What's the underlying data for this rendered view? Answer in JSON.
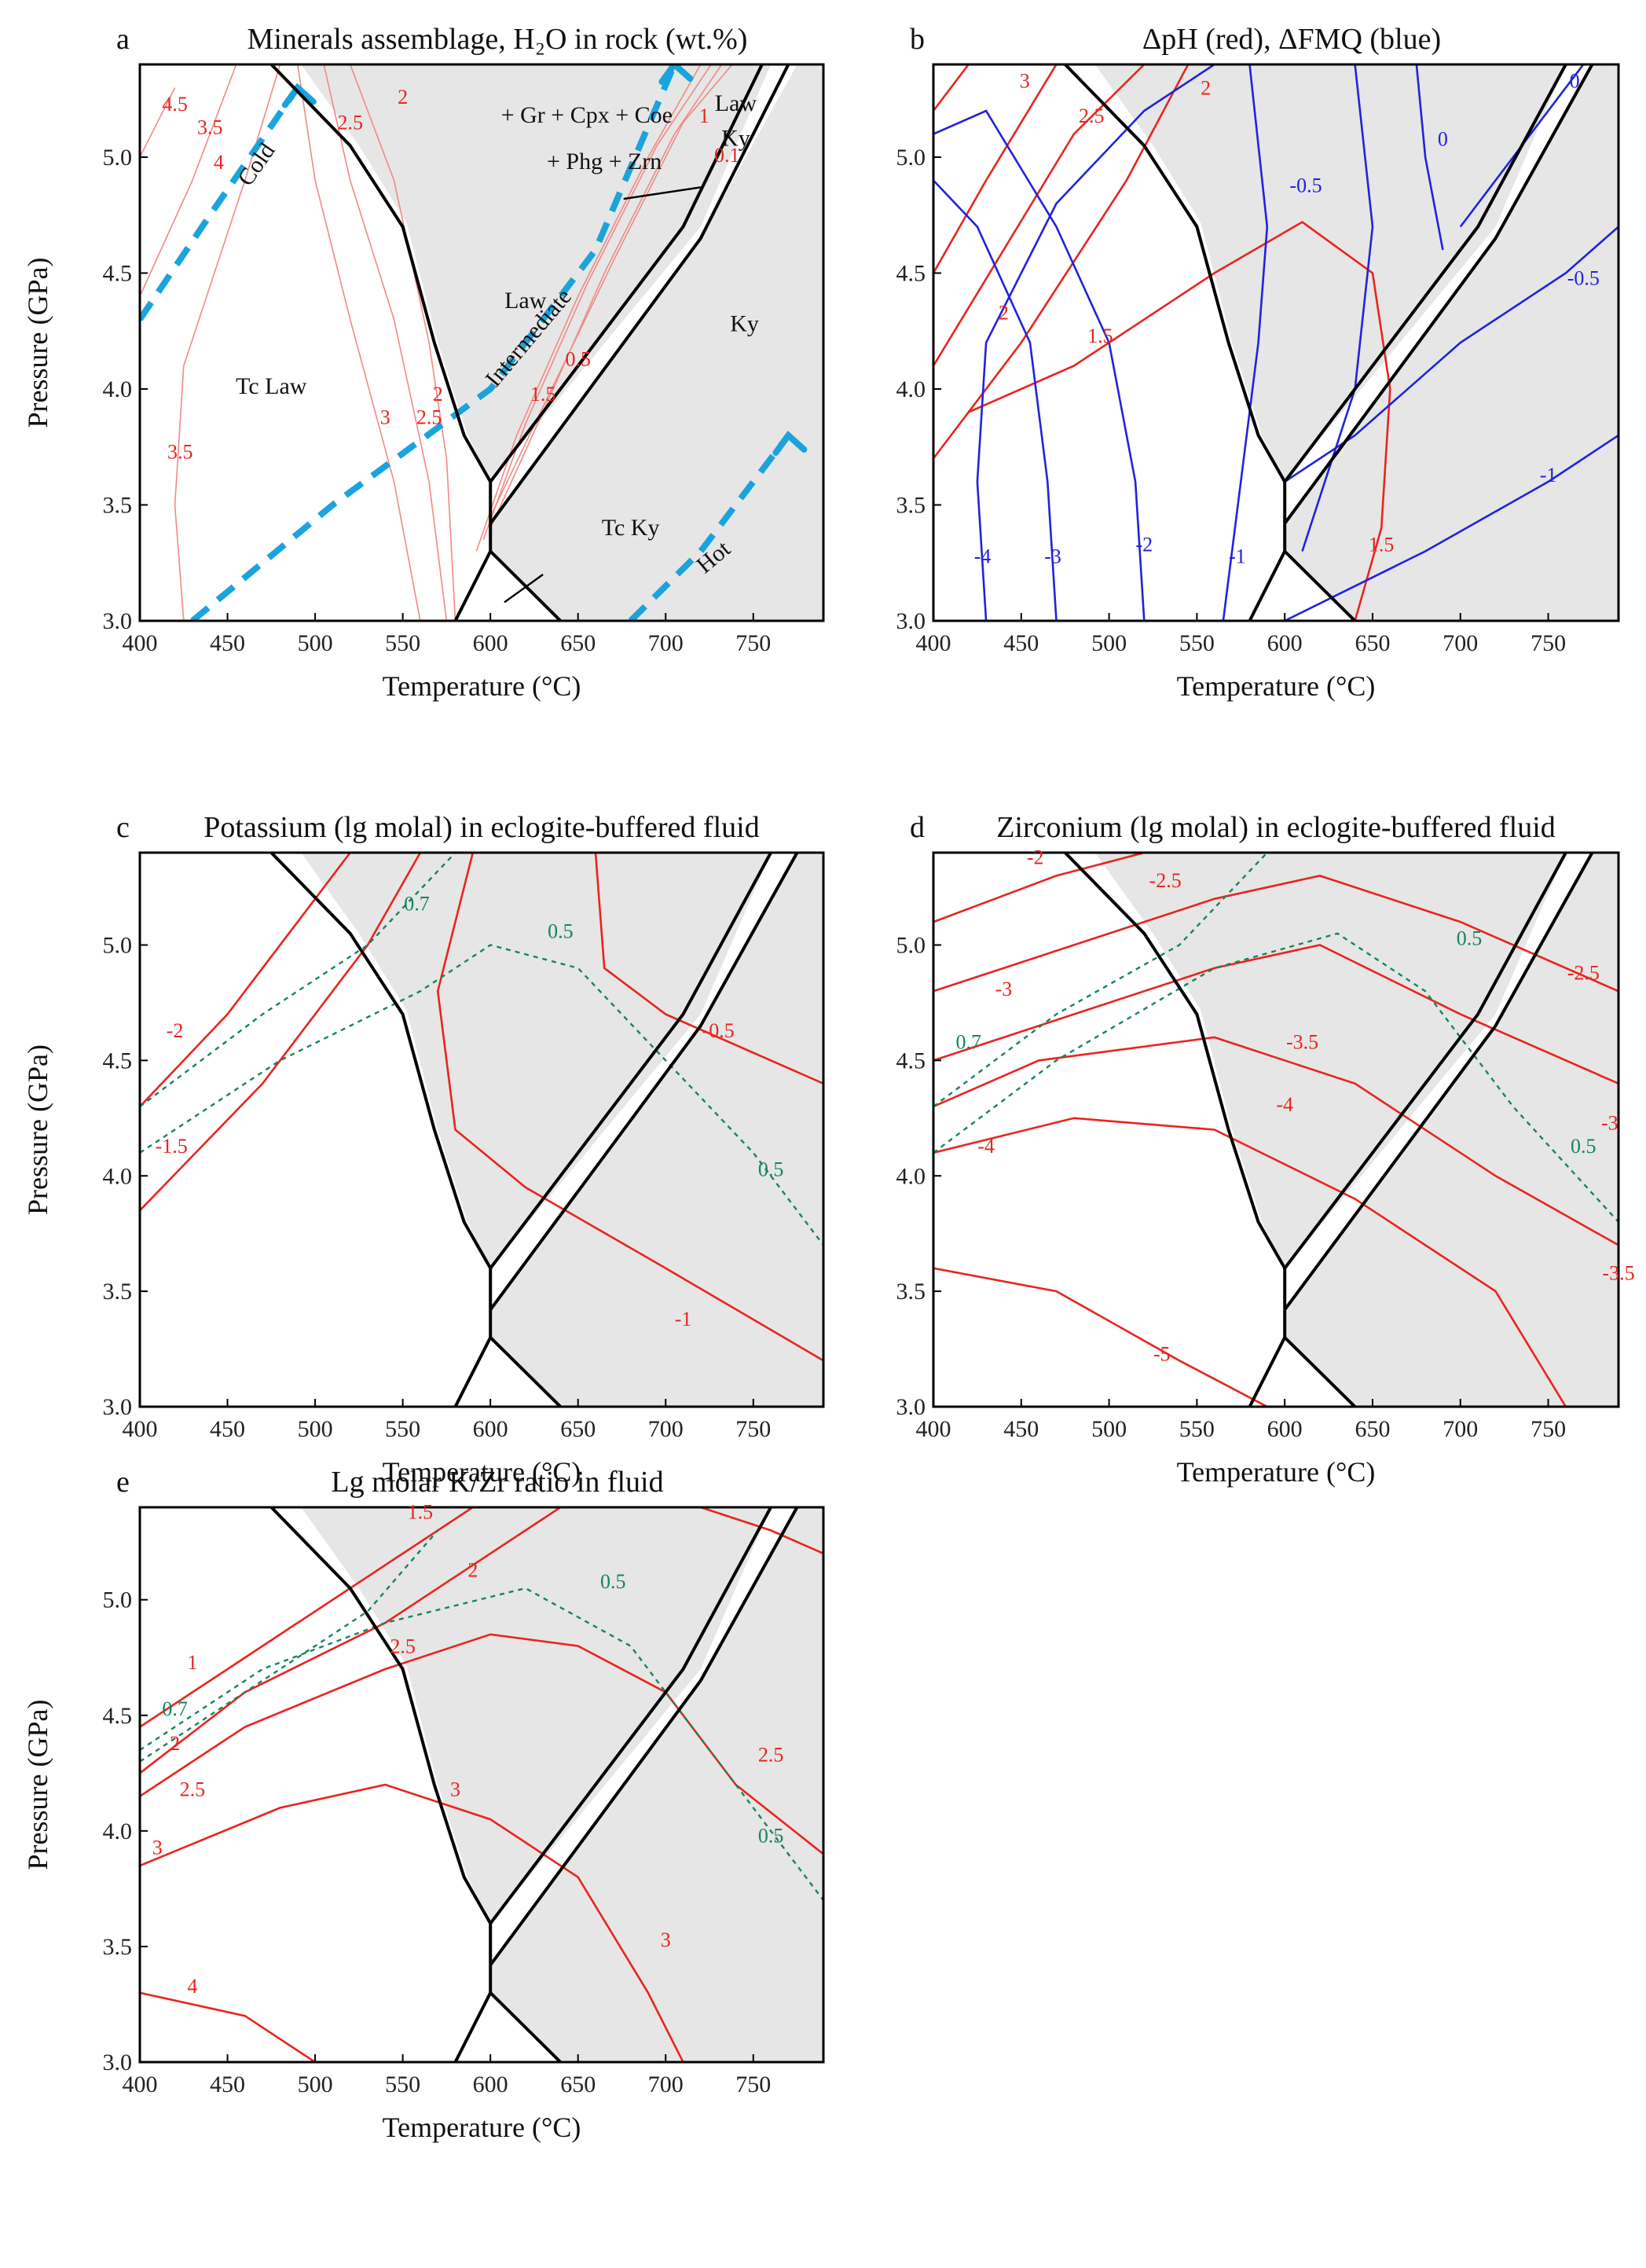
{
  "chart_data": [
    {
      "id": "a",
      "type": "line",
      "title": "Minerals assemblage, H₂O in rock (wt.%)",
      "panel_label": "a",
      "xlabel": "Temperature (°C)",
      "ylabel": "Pressure (GPa)",
      "xlim": [
        400,
        790
      ],
      "ylim": [
        3.0,
        5.4
      ],
      "xticks": [
        "400",
        "450",
        "500",
        "550",
        "600",
        "650",
        "700",
        "750"
      ],
      "yticks": [
        "3.0",
        "3.5",
        "4.0",
        "4.5",
        "5.0"
      ],
      "regions": [
        "+ Gr + Cpx + Coe",
        "+ Phg + Zrn",
        "Law",
        "Law",
        "Ky",
        "Ky",
        "Tc Law",
        "Tc Ky"
      ],
      "contour_labels": [
        "4.5",
        "4",
        "3.5",
        "3.5",
        "3",
        "2.5",
        "2.5",
        "2",
        "2",
        "1.5",
        "0.5",
        "1",
        "0.1"
      ],
      "pt_paths": [
        "Cold",
        "Intermediate",
        "Hot"
      ],
      "contours": [
        {
          "level": "4.5",
          "color": "pink",
          "points": [
            [
              400,
              5.0
            ],
            [
              420,
              5.3
            ]
          ]
        },
        {
          "level": "4",
          "color": "pink",
          "points": [
            [
              400,
              4.4
            ],
            [
              430,
              4.9
            ],
            [
              455,
              5.4
            ]
          ]
        },
        {
          "level": "3.5",
          "color": "pink",
          "points": [
            [
              425,
              3.0
            ],
            [
              420,
              3.5
            ],
            [
              425,
              4.1
            ],
            [
              460,
              4.9
            ],
            [
              480,
              5.4
            ]
          ]
        },
        {
          "level": "3",
          "color": "pink",
          "points": [
            [
              560,
              3.0
            ],
            [
              545,
              3.6
            ],
            [
              520,
              4.3
            ],
            [
              500,
              4.9
            ],
            [
              490,
              5.4
            ]
          ]
        },
        {
          "level": "2.5",
          "color": "pink",
          "points": [
            [
              575,
              3.0
            ],
            [
              565,
              3.6
            ],
            [
              545,
              4.3
            ],
            [
              520,
              4.9
            ],
            [
              505,
              5.4
            ]
          ]
        },
        {
          "level": "2",
          "color": "pink",
          "points": [
            [
              580,
              3.0
            ],
            [
              575,
              3.7
            ],
            [
              565,
              4.2
            ],
            [
              545,
              4.9
            ],
            [
              520,
              5.4
            ]
          ]
        },
        {
          "level": "1.5",
          "color": "pink",
          "points": [
            [
              592,
              3.3
            ],
            [
              615,
              3.8
            ],
            [
              650,
              4.4
            ],
            [
              690,
              5.0
            ],
            [
              720,
              5.4
            ]
          ]
        },
        {
          "level": "0.5",
          "color": "pink",
          "points": [
            [
              596,
              3.35
            ],
            [
              620,
              3.85
            ],
            [
              655,
              4.45
            ],
            [
              695,
              5.05
            ],
            [
              726,
              5.4
            ]
          ]
        },
        {
          "level": "1",
          "color": "pink",
          "points": [
            [
              600,
              3.4
            ],
            [
              630,
              3.9
            ],
            [
              665,
              4.5
            ],
            [
              705,
              5.1
            ],
            [
              732,
              5.4
            ]
          ]
        },
        {
          "level": "0.1",
          "color": "pink",
          "points": [
            [
              600,
              3.45
            ],
            [
              635,
              4.0
            ],
            [
              670,
              4.55
            ],
            [
              710,
              5.15
            ],
            [
              738,
              5.4
            ]
          ]
        }
      ],
      "boundaries": [
        {
          "points": [
            [
              475,
              5.4
            ],
            [
              520,
              5.05
            ],
            [
              550,
              4.7
            ],
            [
              568,
              4.2
            ],
            [
              585,
              3.8
            ],
            [
              600,
              3.6
            ]
          ]
        },
        {
          "points": [
            [
              600,
              3.6
            ],
            [
              600,
              3.42
            ]
          ]
        },
        {
          "points": [
            [
              600,
              3.42
            ],
            [
              720,
              4.65
            ],
            [
              770,
              5.4
            ]
          ]
        },
        {
          "points": [
            [
              600,
              3.6
            ],
            [
              710,
              4.7
            ],
            [
              755,
              5.4
            ]
          ]
        },
        {
          "points": [
            [
              600,
              3.42
            ],
            [
              600,
              3.3
            ]
          ]
        },
        {
          "points": [
            [
              600,
              3.3
            ],
            [
              580,
              3.0
            ]
          ]
        },
        {
          "points": [
            [
              600,
              3.3
            ],
            [
              640,
              3.0
            ]
          ]
        }
      ],
      "blue_paths": [
        {
          "name": "Cold",
          "points": [
            [
              400,
              4.3
            ],
            [
              440,
              4.75
            ],
            [
              490,
              5.3
            ]
          ]
        },
        {
          "name": "Intermediate",
          "points": [
            [
              430,
              3.0
            ],
            [
              510,
              3.5
            ],
            [
              600,
              4.0
            ],
            [
              660,
              4.6
            ],
            [
              705,
              5.4
            ]
          ]
        },
        {
          "name": "Hot",
          "points": [
            [
              680,
              3.0
            ],
            [
              720,
              3.3
            ],
            [
              770,
              3.8
            ]
          ]
        }
      ],
      "shaded": "+ Gr + Cpx + Coe + Phg + Zrn"
    },
    {
      "id": "b",
      "type": "line",
      "title": "ΔpH (red), ΔFMQ (blue)",
      "panel_label": "b",
      "xlabel": "Temperature (°C)",
      "ylabel": "",
      "xlim": [
        400,
        790
      ],
      "ylim": [
        3.0,
        5.4
      ],
      "xticks": [
        "400",
        "450",
        "500",
        "550",
        "600",
        "650",
        "700",
        "750"
      ],
      "yticks": [
        "3.0",
        "3.5",
        "4.0",
        "4.5",
        "5.0"
      ],
      "contour_labels_red": [
        "3",
        "2.5",
        "2",
        "2",
        "1.5",
        "1.5"
      ],
      "contour_labels_blue": [
        "-4",
        "-3",
        "-2",
        "-1",
        "-0.5",
        "0",
        "-0.5",
        "0",
        "-1"
      ]
    },
    {
      "id": "c",
      "type": "line",
      "title": "Potassium (lg molal)  in eclogite-buffered fluid",
      "panel_label": "c",
      "xlabel": "Temperature (°C)",
      "ylabel": "Pressure (GPa)",
      "xlim": [
        400,
        790
      ],
      "ylim": [
        3.0,
        5.4
      ],
      "xticks": [
        "400",
        "450",
        "500",
        "550",
        "600",
        "650",
        "700",
        "750"
      ],
      "yticks": [
        "3.0",
        "3.5",
        "4.0",
        "4.5",
        "5.0"
      ],
      "contour_labels_red": [
        "-2",
        "-1.5",
        "-0.5",
        "-1"
      ],
      "contour_labels_green": [
        "0.7",
        "0.5",
        "0.5"
      ]
    },
    {
      "id": "d",
      "type": "line",
      "title": "Zirconium (lg molal)  in eclogite-buffered fluid",
      "panel_label": "d",
      "xlabel": "Temperature (°C)",
      "ylabel": "",
      "xlim": [
        400,
        790
      ],
      "ylim": [
        3.0,
        5.4
      ],
      "xticks": [
        "400",
        "450",
        "500",
        "550",
        "600",
        "650",
        "700",
        "750"
      ],
      "yticks": [
        "3.0",
        "3.5",
        "4.0",
        "4.5",
        "5.0"
      ],
      "contour_labels_red": [
        "-2",
        "-2.5",
        "-2.5",
        "-3",
        "-3.5",
        "-4",
        "-4",
        "-3",
        "-3.5",
        "-5"
      ],
      "contour_labels_green": [
        "0.7",
        "0.5",
        "0.5"
      ]
    },
    {
      "id": "e",
      "type": "line",
      "title": "Lg molar K/Zr ratio in fluid",
      "panel_label": "e",
      "xlabel": "Temperature (°C)",
      "ylabel": "Pressure (GPa)",
      "xlim": [
        400,
        790
      ],
      "ylim": [
        3.0,
        5.4
      ],
      "xticks": [
        "400",
        "450",
        "500",
        "550",
        "600",
        "650",
        "700",
        "750"
      ],
      "yticks": [
        "3.0",
        "3.5",
        "4.0",
        "4.5",
        "5.0"
      ],
      "contour_labels_red": [
        "1.5",
        "1",
        "2",
        "2",
        "2.5",
        "2.5",
        "2.5",
        "3",
        "3",
        "3",
        "4"
      ],
      "contour_labels_green": [
        "0.7",
        "0.5",
        "0.5"
      ]
    }
  ]
}
